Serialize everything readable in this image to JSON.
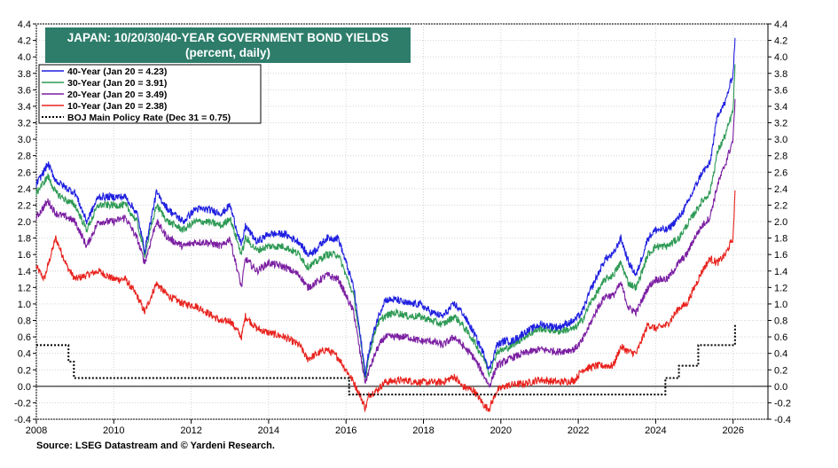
{
  "chart_data": {
    "type": "line",
    "title": "JAPAN: 10/20/30/40-YEAR GOVERNMENT BOND YIELDS",
    "subtitle": "(percent, daily)",
    "source": "Source: LSEG Datastream and © Yardeni Research.",
    "xlim": [
      2008,
      2026.9
    ],
    "ylim": [
      -0.4,
      4.4
    ],
    "x_ticks": [
      "2008",
      "2010",
      "2012",
      "2014",
      "2016",
      "2018",
      "2020",
      "2022",
      "2024",
      "2026"
    ],
    "y_ticks": [
      "-0.4",
      "-0.2",
      "0.0",
      "0.2",
      "0.4",
      "0.6",
      "0.8",
      "1.0",
      "1.2",
      "1.4",
      "1.6",
      "1.8",
      "2.0",
      "2.2",
      "2.4",
      "2.6",
      "2.8",
      "3.0",
      "3.2",
      "3.4",
      "3.6",
      "3.8",
      "4.0",
      "4.2",
      "4.4"
    ],
    "grid": true,
    "legend_position": "top-left",
    "series": [
      {
        "name": "40-Year",
        "label": "40-Year (Jan 20 = 4.23)",
        "color": "#1f1fe0",
        "style": "solid",
        "x": [
          2008.0,
          2008.3,
          2008.5,
          2008.8,
          2009.0,
          2009.3,
          2009.6,
          2010.0,
          2010.3,
          2010.6,
          2010.8,
          2011.1,
          2011.4,
          2011.8,
          2012.1,
          2012.4,
          2012.8,
          2013.0,
          2013.3,
          2013.4,
          2013.7,
          2014.0,
          2014.4,
          2014.8,
          2015.0,
          2015.2,
          2015.5,
          2015.8,
          2016.0,
          2016.2,
          2016.4,
          2016.5,
          2016.6,
          2016.8,
          2017.0,
          2017.3,
          2017.6,
          2017.9,
          2018.2,
          2018.5,
          2018.8,
          2019.0,
          2019.3,
          2019.6,
          2019.7,
          2019.9,
          2020.1,
          2020.3,
          2020.6,
          2021.0,
          2021.5,
          2021.9,
          2022.1,
          2022.3,
          2022.5,
          2022.7,
          2022.9,
          2023.1,
          2023.3,
          2023.5,
          2023.8,
          2024.0,
          2024.3,
          2024.6,
          2024.8,
          2025.0,
          2025.2,
          2025.4,
          2025.6,
          2025.8,
          2026.0,
          2026.05
        ],
        "values": [
          2.45,
          2.7,
          2.5,
          2.4,
          2.35,
          2.0,
          2.3,
          2.3,
          2.3,
          2.1,
          1.65,
          2.35,
          2.15,
          2.0,
          2.15,
          2.15,
          2.1,
          2.2,
          1.7,
          1.95,
          1.75,
          1.85,
          1.85,
          1.75,
          1.6,
          1.65,
          1.8,
          1.8,
          1.5,
          1.2,
          0.5,
          0.15,
          0.45,
          0.8,
          1.05,
          1.05,
          1.0,
          1.0,
          0.9,
          0.85,
          1.0,
          0.9,
          0.65,
          0.35,
          0.2,
          0.5,
          0.55,
          0.55,
          0.65,
          0.75,
          0.72,
          0.8,
          0.9,
          1.15,
          1.35,
          1.55,
          1.6,
          1.8,
          1.5,
          1.35,
          1.8,
          1.9,
          1.9,
          2.05,
          2.2,
          2.4,
          2.6,
          2.7,
          3.3,
          3.45,
          3.8,
          4.23
        ]
      },
      {
        "name": "30-Year",
        "label": "30-Year (Jan 20 = 3.91)",
        "color": "#2e9a55",
        "style": "solid",
        "x": [
          2008.0,
          2008.3,
          2008.5,
          2008.8,
          2009.0,
          2009.3,
          2009.6,
          2010.0,
          2010.3,
          2010.6,
          2010.8,
          2011.1,
          2011.4,
          2011.8,
          2012.1,
          2012.4,
          2012.8,
          2013.0,
          2013.3,
          2013.4,
          2013.7,
          2014.0,
          2014.4,
          2014.8,
          2015.0,
          2015.2,
          2015.5,
          2015.8,
          2016.0,
          2016.2,
          2016.4,
          2016.5,
          2016.6,
          2016.8,
          2017.0,
          2017.3,
          2017.6,
          2017.9,
          2018.2,
          2018.5,
          2018.8,
          2019.0,
          2019.3,
          2019.6,
          2019.7,
          2019.9,
          2020.1,
          2020.3,
          2020.6,
          2021.0,
          2021.5,
          2021.9,
          2022.1,
          2022.3,
          2022.5,
          2022.7,
          2022.9,
          2023.1,
          2023.3,
          2023.5,
          2023.8,
          2024.0,
          2024.3,
          2024.6,
          2024.8,
          2025.0,
          2025.2,
          2025.4,
          2025.6,
          2025.8,
          2026.0,
          2026.05
        ],
        "values": [
          2.35,
          2.55,
          2.35,
          2.25,
          2.2,
          1.9,
          2.2,
          2.2,
          2.2,
          2.0,
          1.6,
          2.2,
          2.0,
          1.9,
          2.0,
          2.0,
          1.95,
          2.05,
          1.6,
          1.8,
          1.65,
          1.7,
          1.7,
          1.6,
          1.45,
          1.5,
          1.6,
          1.6,
          1.35,
          1.1,
          0.45,
          0.1,
          0.4,
          0.75,
          0.85,
          0.9,
          0.85,
          0.85,
          0.8,
          0.75,
          0.85,
          0.75,
          0.55,
          0.3,
          0.15,
          0.42,
          0.45,
          0.5,
          0.6,
          0.7,
          0.67,
          0.7,
          0.8,
          1.0,
          1.15,
          1.3,
          1.35,
          1.5,
          1.25,
          1.2,
          1.6,
          1.7,
          1.7,
          1.8,
          1.95,
          2.1,
          2.25,
          2.35,
          2.85,
          3.05,
          3.35,
          3.91
        ]
      },
      {
        "name": "20-Year",
        "label": "20-Year (Jan 20 = 3.49)",
        "color": "#7b1fa2",
        "style": "solid",
        "x": [
          2008.0,
          2008.3,
          2008.5,
          2008.8,
          2009.0,
          2009.3,
          2009.6,
          2010.0,
          2010.3,
          2010.6,
          2010.8,
          2011.1,
          2011.4,
          2011.8,
          2012.1,
          2012.4,
          2012.8,
          2013.0,
          2013.3,
          2013.4,
          2013.7,
          2014.0,
          2014.4,
          2014.8,
          2015.0,
          2015.2,
          2015.5,
          2015.8,
          2016.0,
          2016.2,
          2016.4,
          2016.5,
          2016.6,
          2016.8,
          2017.0,
          2017.3,
          2017.6,
          2017.9,
          2018.2,
          2018.5,
          2018.8,
          2019.0,
          2019.3,
          2019.6,
          2019.7,
          2019.9,
          2020.1,
          2020.3,
          2020.6,
          2021.0,
          2021.5,
          2021.9,
          2022.1,
          2022.3,
          2022.5,
          2022.7,
          2022.9,
          2023.1,
          2023.3,
          2023.5,
          2023.8,
          2024.0,
          2024.3,
          2024.6,
          2024.8,
          2025.0,
          2025.2,
          2025.4,
          2025.6,
          2025.8,
          2026.0,
          2026.05
        ],
        "values": [
          2.05,
          2.25,
          2.1,
          2.05,
          2.0,
          1.7,
          2.0,
          2.0,
          2.05,
          1.8,
          1.5,
          2.0,
          1.8,
          1.7,
          1.75,
          1.75,
          1.7,
          1.8,
          1.2,
          1.55,
          1.4,
          1.5,
          1.45,
          1.35,
          1.2,
          1.25,
          1.35,
          1.3,
          1.1,
          0.9,
          0.3,
          0.05,
          0.2,
          0.45,
          0.6,
          0.6,
          0.6,
          0.55,
          0.55,
          0.5,
          0.6,
          0.5,
          0.35,
          0.1,
          0.0,
          0.25,
          0.3,
          0.35,
          0.4,
          0.45,
          0.42,
          0.45,
          0.55,
          0.75,
          0.95,
          1.1,
          1.1,
          1.25,
          0.95,
          0.9,
          1.2,
          1.3,
          1.3,
          1.5,
          1.6,
          1.8,
          1.95,
          2.05,
          2.45,
          2.7,
          3.0,
          3.49
        ]
      },
      {
        "name": "10-Year",
        "label": "10-Year (Jan 20 = 2.38)",
        "color": "#e8231e",
        "style": "solid",
        "x": [
          2008.0,
          2008.2,
          2008.5,
          2008.8,
          2009.0,
          2009.3,
          2009.6,
          2010.0,
          2010.3,
          2010.6,
          2010.8,
          2011.1,
          2011.4,
          2011.8,
          2012.1,
          2012.4,
          2012.8,
          2013.0,
          2013.3,
          2013.4,
          2013.7,
          2014.0,
          2014.4,
          2014.8,
          2015.0,
          2015.2,
          2015.5,
          2015.8,
          2016.0,
          2016.2,
          2016.4,
          2016.5,
          2016.6,
          2016.8,
          2017.0,
          2017.3,
          2017.6,
          2017.9,
          2018.2,
          2018.5,
          2018.8,
          2019.0,
          2019.3,
          2019.6,
          2019.7,
          2019.9,
          2020.1,
          2020.3,
          2020.6,
          2021.0,
          2021.5,
          2021.9,
          2022.1,
          2022.3,
          2022.5,
          2022.7,
          2022.9,
          2023.1,
          2023.3,
          2023.5,
          2023.8,
          2024.0,
          2024.3,
          2024.6,
          2024.8,
          2025.0,
          2025.2,
          2025.4,
          2025.6,
          2025.8,
          2026.0,
          2026.05
        ],
        "values": [
          1.45,
          1.3,
          1.8,
          1.45,
          1.3,
          1.35,
          1.4,
          1.3,
          1.3,
          1.1,
          0.9,
          1.25,
          1.1,
          1.0,
          0.98,
          0.9,
          0.78,
          0.8,
          0.6,
          0.85,
          0.7,
          0.65,
          0.6,
          0.5,
          0.33,
          0.38,
          0.45,
          0.35,
          0.2,
          0.05,
          -0.15,
          -0.27,
          -0.1,
          -0.05,
          0.05,
          0.07,
          0.07,
          0.05,
          0.05,
          0.05,
          0.12,
          0.0,
          -0.05,
          -0.25,
          -0.27,
          -0.05,
          0.0,
          0.02,
          0.03,
          0.08,
          0.05,
          0.07,
          0.2,
          0.23,
          0.25,
          0.25,
          0.25,
          0.48,
          0.42,
          0.4,
          0.75,
          0.7,
          0.75,
          0.95,
          1.0,
          1.2,
          1.4,
          1.55,
          1.5,
          1.6,
          1.8,
          2.38
        ]
      },
      {
        "name": "BOJ Main Policy Rate",
        "label": "BOJ Main Policy Rate (Dec 31 = 0.75)",
        "color": "#000000",
        "style": "dotted",
        "step": true,
        "x": [
          2008.0,
          2008.83,
          2008.97,
          2016.08,
          2024.25,
          2024.6,
          2025.1,
          2026.05
        ],
        "values": [
          0.5,
          0.3,
          0.1,
          -0.1,
          0.1,
          0.25,
          0.5,
          0.75
        ]
      }
    ]
  }
}
